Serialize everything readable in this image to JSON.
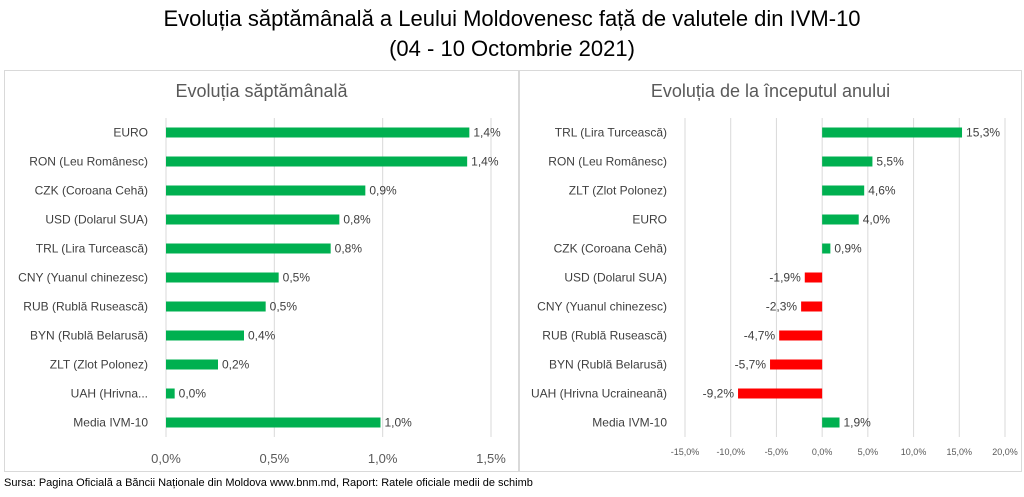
{
  "title_line1": "Evoluția săptămânală a Leului Moldovenesc față de valutele din IVM-10",
  "title_line2": "(04 - 10 Octombrie 2021)",
  "source": "Sursa: Pagina Oficială a Băncii Naționale din Moldova www.bnm.md, Raport: Ratele oficiale medii de schimb",
  "colors": {
    "positive": "#00b050",
    "negative": "#ff0000",
    "grid": "#d9d9d9",
    "text": "#404040"
  },
  "chart_data": [
    {
      "type": "bar",
      "orientation": "horizontal",
      "title": "Evoluția săptămânală",
      "categories": [
        "EURO",
        "RON (Leu Românesc)",
        "CZK (Coroana Cehă)",
        "USD (Dolarul SUA)",
        "TRL (Lira Turcească)",
        "CNY (Yuanul chinezesc)",
        "RUB (Rublă Rusească)",
        "BYN (Rublă Belarusă)",
        "ZLT (Zlot Polonez)",
        "UAH (Hrivna...",
        "Media IVM-10"
      ],
      "values": [
        1.4,
        1.39,
        0.92,
        0.8,
        0.76,
        0.52,
        0.46,
        0.36,
        0.24,
        0.04,
        0.99
      ],
      "labels": [
        "1,4%",
        "1,4%",
        "0,9%",
        "0,8%",
        "0,8%",
        "0,5%",
        "0,5%",
        "0,4%",
        "0,2%",
        "0,0%",
        "1,0%"
      ],
      "xlim": [
        0,
        1.5
      ],
      "xticks": [
        0,
        0.5,
        1.0,
        1.5
      ],
      "xtick_labels": [
        "0,0%",
        "0,5%",
        "1,0%",
        "1,5%"
      ],
      "xlabel": "",
      "ylabel": "",
      "grid": true,
      "legend": "none"
    },
    {
      "type": "bar",
      "orientation": "horizontal",
      "title": "Evoluția de la începutul anului",
      "categories": [
        "TRL (Lira Turcească)",
        "RON (Leu Românesc)",
        "ZLT (Zlot Polonez)",
        "EURO",
        "CZK (Coroana Cehă)",
        "USD (Dolarul SUA)",
        "CNY (Yuanul chinezesc)",
        "RUB (Rublă Rusească)",
        "BYN (Rublă Belarusă)",
        "UAH (Hrivna Ucraineană)",
        "Media IVM-10"
      ],
      "values": [
        15.3,
        5.5,
        4.6,
        4.0,
        0.9,
        -1.9,
        -2.3,
        -4.7,
        -5.7,
        -9.2,
        1.9
      ],
      "labels": [
        "15,3%",
        "5,5%",
        "4,6%",
        "4,0%",
        "0,9%",
        "-1,9%",
        "-2,3%",
        "-4,7%",
        "-5,7%",
        "-9,2%",
        "1,9%"
      ],
      "xlim": [
        -15,
        20
      ],
      "xticks": [
        -15,
        -10,
        -5,
        0,
        5,
        10,
        15,
        20
      ],
      "xtick_labels": [
        "-15,0%",
        "-10,0%",
        "-5,0%",
        "0,0%",
        "5,0%",
        "10,0%",
        "15,0%",
        "20,0%"
      ],
      "xlabel": "",
      "ylabel": "",
      "grid": true,
      "legend": "none"
    }
  ]
}
